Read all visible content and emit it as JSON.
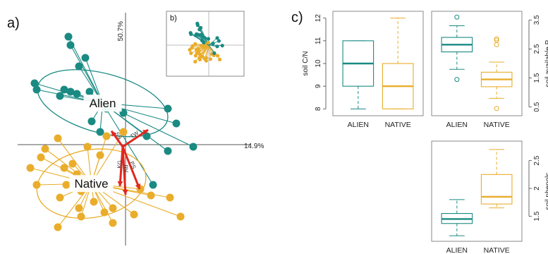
{
  "colors": {
    "alien": "#1a8a83",
    "native": "#e9ad2b",
    "arrow": "#e0281e",
    "axis": "#555555",
    "frame": "#888888"
  },
  "panel_labels": {
    "a": "a)",
    "b": "b)",
    "c": "c)"
  },
  "chart_data": [
    {
      "type": "scatter",
      "panel": "a",
      "axis_labels": {
        "vertical": "50.7%",
        "horizontal": "14.9%"
      },
      "groups": [
        {
          "label": "Alien",
          "color": "#1a8a83",
          "points": [
            [
              -1.35,
              2.55
            ],
            [
              -1.3,
              2.35
            ],
            [
              -0.95,
              2.05
            ],
            [
              -1.1,
              1.85
            ],
            [
              -2.15,
              1.45
            ],
            [
              -2.1,
              1.3
            ],
            [
              -1.45,
              1.3
            ],
            [
              -1.3,
              1.25
            ],
            [
              -1.15,
              1.2
            ],
            [
              -1.55,
              1.15
            ],
            [
              -0.7,
              1.0
            ],
            [
              -0.85,
              1.25
            ],
            [
              -0.45,
              0.85
            ],
            [
              -0.8,
              0.55
            ],
            [
              -0.6,
              0.3
            ],
            [
              0.5,
              0.2
            ],
            [
              1.2,
              0.5
            ],
            [
              1.6,
              -0.05
            ],
            [
              0.65,
              -0.95
            ],
            [
              1.0,
              -0.15
            ],
            [
              -0.05,
              0.75
            ],
            [
              1.0,
              0.85
            ]
          ]
        },
        {
          "label": "Native",
          "color": "#e9ad2b",
          "points": [
            [
              -2.1,
              -0.95
            ],
            [
              -2.25,
              -0.55
            ],
            [
              -2.0,
              -0.3
            ],
            [
              -1.9,
              -0.1
            ],
            [
              -1.6,
              0.15
            ],
            [
              -1.45,
              -0.55
            ],
            [
              -1.25,
              -0.45
            ],
            [
              -1.15,
              -0.7
            ],
            [
              -1.4,
              -0.95
            ],
            [
              -1.55,
              -1.25
            ],
            [
              -1.05,
              -1.1
            ],
            [
              -0.75,
              -1.35
            ],
            [
              -0.5,
              -1.6
            ],
            [
              -0.3,
              -1.5
            ],
            [
              -1.1,
              -1.5
            ],
            [
              -1.05,
              -1.7
            ],
            [
              -0.6,
              -0.25
            ],
            [
              -0.9,
              -0.05
            ],
            [
              0.35,
              -1.05
            ],
            [
              0.6,
              -1.2
            ],
            [
              1.05,
              -1.25
            ],
            [
              0.2,
              -1.65
            ],
            [
              -0.3,
              -1.85
            ],
            [
              1.3,
              -1.7
            ],
            [
              -1.6,
              -1.95
            ],
            [
              -0.05,
              0.3
            ],
            [
              -0.45,
              0.2
            ]
          ]
        }
      ],
      "loadings": [
        {
          "label": "TW",
          "x": 0.45,
          "y": 0.3
        },
        {
          "label": "SS",
          "x": -0.2,
          "y": 0.28
        },
        {
          "label": "KG",
          "x": -0.05,
          "y": -0.7
        },
        {
          "label": "RV",
          "x": 0.05,
          "y": -0.85
        },
        {
          "label": "PS",
          "x": 0.3,
          "y": -0.75
        }
      ]
    },
    {
      "type": "boxplot",
      "panel": "c-top-left",
      "ylabel": "soil C/N",
      "categories": [
        "ALIEN",
        "NATIVE"
      ],
      "yticks": [
        8,
        9,
        10,
        11,
        12
      ],
      "ylim": [
        7.7,
        12.3
      ],
      "boxes": [
        {
          "min": 8,
          "q1": 9,
          "median": 10,
          "q3": 11,
          "max": 11,
          "outliers": []
        },
        {
          "min": 8,
          "q1": 8,
          "median": 9,
          "q3": 10,
          "max": 12,
          "outliers": []
        }
      ]
    },
    {
      "type": "boxplot",
      "panel": "c-top-right",
      "ylabel": "soil available P",
      "categories": [
        "ALIEN",
        "NATIVE"
      ],
      "yticks": [
        0.5,
        1.5,
        2.5,
        3.5
      ],
      "ylim": [
        0.2,
        3.8
      ],
      "boxes": [
        {
          "min": 1.8,
          "q1": 2.4,
          "median": 2.65,
          "q3": 2.9,
          "max": 3.3,
          "outliers": [
            3.6,
            1.45
          ]
        },
        {
          "min": 0.8,
          "q1": 1.2,
          "median": 1.45,
          "q3": 1.7,
          "max": 2.05,
          "outliers": [
            2.65,
            2.8,
            2.85,
            0.45
          ]
        }
      ]
    },
    {
      "type": "boxplot",
      "panel": "c-bottom-right",
      "ylabel": "soil phenols",
      "categories": [
        "ALIEN",
        "NATIVE"
      ],
      "yticks": [
        1.5,
        2.0,
        2.5
      ],
      "ylim": [
        1.05,
        2.85
      ],
      "boxes": [
        {
          "min": 1.15,
          "q1": 1.37,
          "median": 1.45,
          "q3": 1.55,
          "max": 1.8,
          "outliers": []
        },
        {
          "min": 1.65,
          "q1": 1.72,
          "median": 1.85,
          "q3": 2.25,
          "max": 2.7,
          "outliers": []
        }
      ]
    }
  ]
}
